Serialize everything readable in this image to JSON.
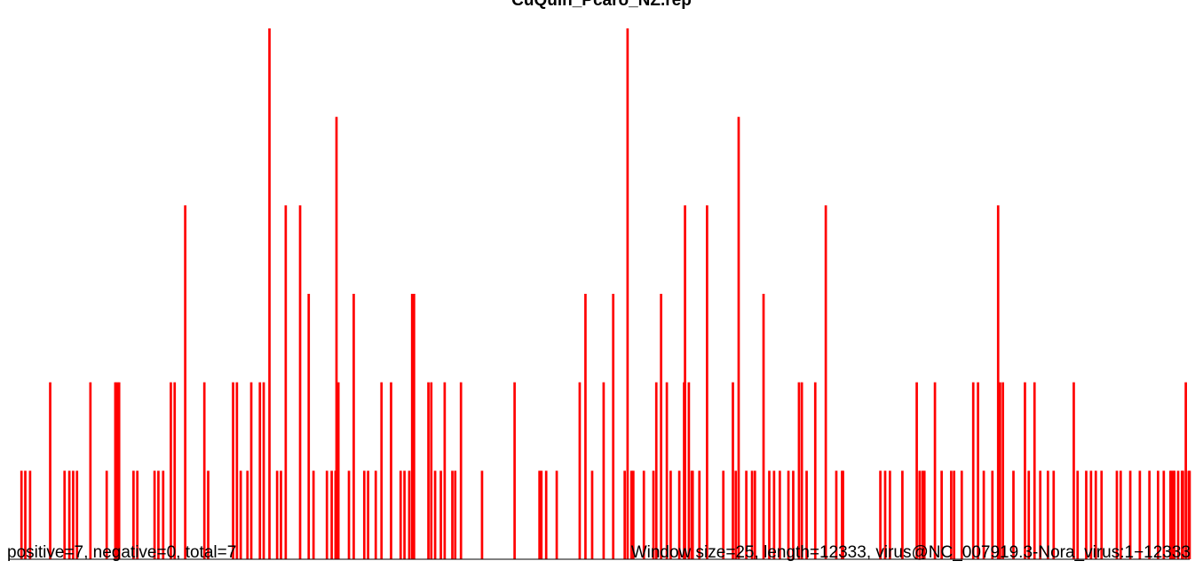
{
  "chart_data": {
    "type": "bar",
    "title": "CuQuin_Pcaro_NZ.rep",
    "xlabel": "",
    "ylabel": "",
    "x_domain": [
      1,
      12333
    ],
    "ylim": [
      0,
      6
    ],
    "window_size": 25,
    "bar_color": "#ff0000",
    "grid": false,
    "series": [
      {
        "name": "",
        "values": [
          [
            120,
            1
          ],
          [
            160,
            1
          ],
          [
            210,
            1
          ],
          [
            420,
            2
          ],
          [
            570,
            1
          ],
          [
            620,
            1
          ],
          [
            660,
            1
          ],
          [
            700,
            1
          ],
          [
            840,
            2
          ],
          [
            1010,
            1
          ],
          [
            1100,
            2
          ],
          [
            1120,
            2
          ],
          [
            1140,
            2
          ],
          [
            1290,
            1
          ],
          [
            1330,
            1
          ],
          [
            1510,
            1
          ],
          [
            1550,
            1
          ],
          [
            1600,
            1
          ],
          [
            1680,
            2
          ],
          [
            1720,
            2
          ],
          [
            1830,
            4
          ],
          [
            2030,
            2
          ],
          [
            2070,
            1
          ],
          [
            2330,
            2
          ],
          [
            2370,
            2
          ],
          [
            2410,
            1
          ],
          [
            2480,
            1
          ],
          [
            2520,
            2
          ],
          [
            2610,
            2
          ],
          [
            2650,
            2
          ],
          [
            2710,
            6
          ],
          [
            2790,
            1
          ],
          [
            2830,
            1
          ],
          [
            2880,
            4
          ],
          [
            3030,
            4
          ],
          [
            3120,
            3
          ],
          [
            3170,
            1
          ],
          [
            3310,
            1
          ],
          [
            3360,
            1
          ],
          [
            3400,
            1
          ],
          [
            3410,
            5
          ],
          [
            3430,
            2
          ],
          [
            3540,
            1
          ],
          [
            3590,
            3
          ],
          [
            3700,
            1
          ],
          [
            3740,
            1
          ],
          [
            3820,
            1
          ],
          [
            3880,
            2
          ],
          [
            3980,
            2
          ],
          [
            4080,
            1
          ],
          [
            4120,
            1
          ],
          [
            4170,
            1
          ],
          [
            4200,
            3
          ],
          [
            4220,
            3
          ],
          [
            4370,
            2
          ],
          [
            4400,
            2
          ],
          [
            4440,
            1
          ],
          [
            4500,
            1
          ],
          [
            4540,
            2
          ],
          [
            4620,
            1
          ],
          [
            4650,
            1
          ],
          [
            4710,
            2
          ],
          [
            4930,
            1
          ],
          [
            5270,
            2
          ],
          [
            5530,
            1
          ],
          [
            5550,
            1
          ],
          [
            5600,
            1
          ],
          [
            5710,
            1
          ],
          [
            5950,
            2
          ],
          [
            6010,
            3
          ],
          [
            6080,
            1
          ],
          [
            6200,
            2
          ],
          [
            6300,
            3
          ],
          [
            6420,
            1
          ],
          [
            6450,
            6
          ],
          [
            6490,
            1
          ],
          [
            6510,
            1
          ],
          [
            6620,
            1
          ],
          [
            6720,
            1
          ],
          [
            6750,
            2
          ],
          [
            6800,
            3
          ],
          [
            6860,
            2
          ],
          [
            6900,
            1
          ],
          [
            6990,
            1
          ],
          [
            7040,
            2
          ],
          [
            7050,
            4
          ],
          [
            7090,
            2
          ],
          [
            7120,
            1
          ],
          [
            7130,
            1
          ],
          [
            7200,
            1
          ],
          [
            7280,
            4
          ],
          [
            7450,
            1
          ],
          [
            7550,
            2
          ],
          [
            7580,
            1
          ],
          [
            7610,
            5
          ],
          [
            7690,
            1
          ],
          [
            7750,
            1
          ],
          [
            7780,
            1
          ],
          [
            7870,
            3
          ],
          [
            7930,
            1
          ],
          [
            7980,
            1
          ],
          [
            8040,
            1
          ],
          [
            8130,
            1
          ],
          [
            8180,
            1
          ],
          [
            8240,
            2
          ],
          [
            8270,
            2
          ],
          [
            8320,
            1
          ],
          [
            8410,
            2
          ],
          [
            8520,
            4
          ],
          [
            8630,
            1
          ],
          [
            8690,
            1
          ],
          [
            8700,
            1
          ],
          [
            9090,
            1
          ],
          [
            9140,
            1
          ],
          [
            9190,
            1
          ],
          [
            9320,
            1
          ],
          [
            9470,
            2
          ],
          [
            9500,
            1
          ],
          [
            9530,
            1
          ],
          [
            9550,
            1
          ],
          [
            9660,
            2
          ],
          [
            9730,
            1
          ],
          [
            9830,
            1
          ],
          [
            9860,
            1
          ],
          [
            9940,
            1
          ],
          [
            10060,
            2
          ],
          [
            10110,
            2
          ],
          [
            10170,
            1
          ],
          [
            10260,
            1
          ],
          [
            10320,
            4
          ],
          [
            10340,
            2
          ],
          [
            10370,
            2
          ],
          [
            10480,
            1
          ],
          [
            10600,
            2
          ],
          [
            10640,
            1
          ],
          [
            10700,
            2
          ],
          [
            10760,
            1
          ],
          [
            10840,
            1
          ],
          [
            10900,
            1
          ],
          [
            11110,
            2
          ],
          [
            11150,
            1
          ],
          [
            11240,
            1
          ],
          [
            11290,
            1
          ],
          [
            11340,
            1
          ],
          [
            11400,
            1
          ],
          [
            11560,
            1
          ],
          [
            11600,
            1
          ],
          [
            11700,
            1
          ],
          [
            11800,
            1
          ],
          [
            11900,
            1
          ],
          [
            11990,
            1
          ],
          [
            12050,
            1
          ],
          [
            12120,
            1
          ],
          [
            12130,
            1
          ],
          [
            12150,
            1
          ],
          [
            12160,
            1
          ],
          [
            12200,
            1
          ],
          [
            12240,
            1
          ],
          [
            12250,
            1
          ],
          [
            12280,
            2
          ],
          [
            12310,
            1
          ],
          [
            12320,
            1
          ]
        ]
      }
    ]
  },
  "footer": {
    "left": "positive=7, negative=0, total=7",
    "right": "Window size=25, length=12333, virus@NC_007919.3-Nora_virus:1−12333"
  }
}
